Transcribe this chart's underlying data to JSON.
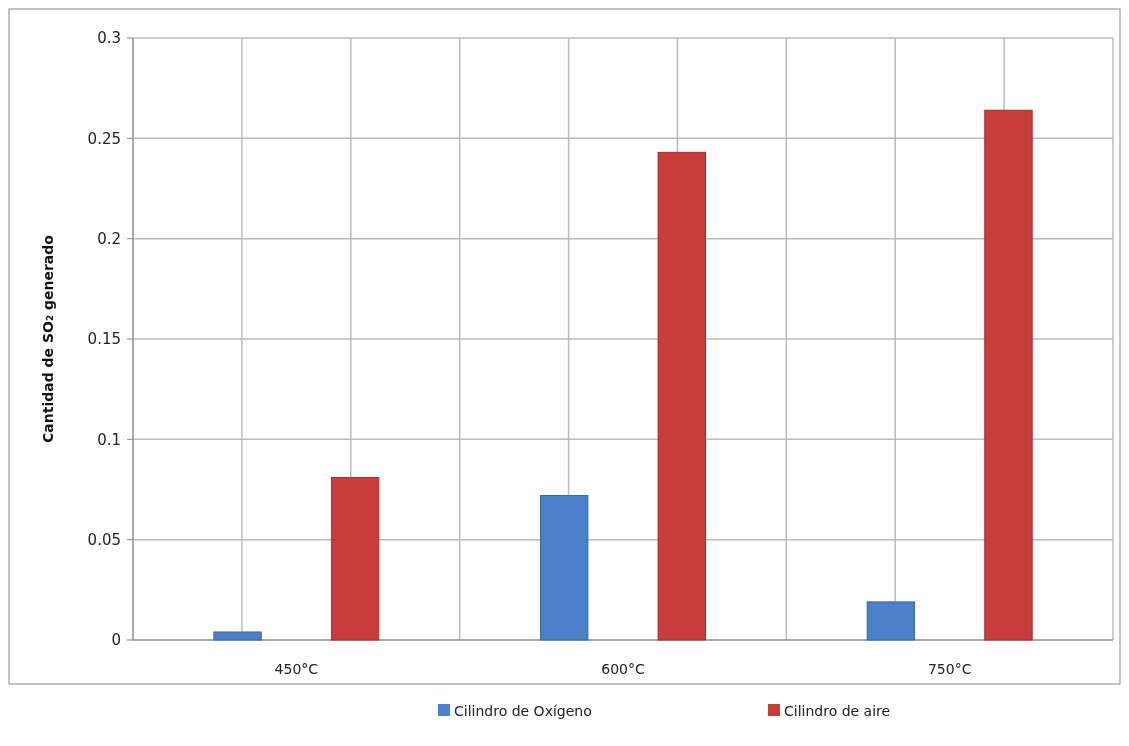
{
  "chart_data": {
    "type": "bar",
    "ylabel": "Cantidad de SO₂ generado",
    "categories": [
      "450°C",
      "600°C",
      "750°C"
    ],
    "series": [
      {
        "name": "Cilindro de Oxígeno",
        "color": "#4a7fc9",
        "values": [
          0.004,
          0.072,
          0.019
        ]
      },
      {
        "name": "Cilindro de aire",
        "color": "#c83c3a",
        "values": [
          0.081,
          0.243,
          0.264
        ]
      }
    ],
    "ylim": [
      0,
      0.3
    ],
    "yticks": [
      0,
      0.05,
      0.1,
      0.15,
      0.2,
      0.25,
      0.3
    ],
    "grid": true,
    "legend": "bottom"
  }
}
